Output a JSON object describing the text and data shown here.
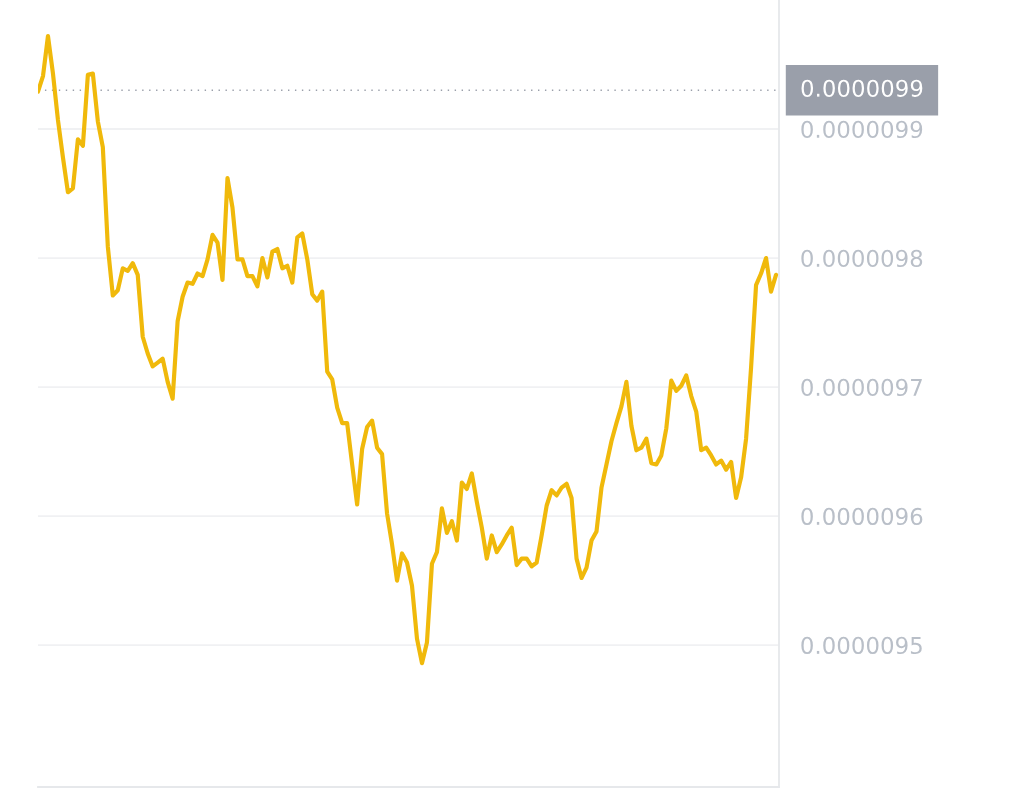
{
  "chart_data": {
    "type": "line",
    "categories": [
      null,
      null,
      null,
      null,
      null,
      null,
      null,
      null,
      null,
      null,
      null,
      null,
      null,
      null,
      null,
      null,
      null,
      null,
      null,
      null,
      null,
      null,
      null,
      null,
      null,
      null,
      null,
      null,
      null,
      null,
      null,
      null,
      null,
      null,
      null,
      null,
      null,
      null,
      null,
      null,
      null,
      null,
      null,
      null,
      null,
      null,
      null,
      null,
      null,
      null,
      null,
      null,
      null,
      null,
      null,
      null,
      null,
      null,
      null,
      null,
      null,
      null,
      null,
      null,
      null,
      null,
      null,
      null,
      null,
      null,
      null,
      null,
      null,
      null,
      null,
      null,
      null,
      null,
      null,
      null,
      null,
      null,
      null,
      null,
      null,
      null,
      null,
      null,
      null,
      null,
      null,
      null,
      null,
      null,
      null,
      null,
      null,
      null,
      null,
      null,
      null,
      null,
      null,
      null,
      null,
      null,
      null,
      null,
      null,
      null,
      null,
      null,
      null,
      null,
      null,
      null,
      null,
      null,
      null,
      null,
      null,
      null,
      null,
      null,
      null,
      null,
      null,
      null,
      null,
      null,
      null,
      null,
      null,
      null,
      null,
      null,
      null,
      null,
      null,
      null,
      null,
      null,
      null,
      null,
      null,
      null,
      null,
      null,
      null
    ],
    "series": [
      {
        "color": "#f0b90b",
        "values": [
          9.929e-06,
          9.941e-06,
          9.972e-06,
          9.943e-06,
          9.907e-06,
          9.878e-06,
          9.851e-06,
          9.854e-06,
          9.892e-06,
          9.887e-06,
          9.942e-06,
          9.943e-06,
          9.906e-06,
          9.886e-06,
          9.809e-06,
          9.771e-06,
          9.775e-06,
          9.792e-06,
          9.79e-06,
          9.796e-06,
          9.787e-06,
          9.739e-06,
          9.726e-06,
          9.716e-06,
          9.719e-06,
          9.722e-06,
          9.704e-06,
          9.691e-06,
          9.751e-06,
          9.77e-06,
          9.781e-06,
          9.78e-06,
          9.788e-06,
          9.786e-06,
          9.799e-06,
          9.818e-06,
          9.812e-06,
          9.783e-06,
          9.862e-06,
          9.839e-06,
          9.799e-06,
          9.799e-06,
          9.786e-06,
          9.786e-06,
          9.778e-06,
          9.8e-06,
          9.785e-06,
          9.805e-06,
          9.807e-06,
          9.792e-06,
          9.794e-06,
          9.781e-06,
          9.816e-06,
          9.819e-06,
          9.799e-06,
          9.772e-06,
          9.767e-06,
          9.774e-06,
          9.712e-06,
          9.706e-06,
          9.684e-06,
          9.672e-06,
          9.672e-06,
          9.64e-06,
          9.609e-06,
          9.652e-06,
          9.669e-06,
          9.674e-06,
          9.653e-06,
          9.648e-06,
          9.602e-06,
          9.578e-06,
          9.55e-06,
          9.571e-06,
          9.564e-06,
          9.546e-06,
          9.505e-06,
          9.486e-06,
          9.502e-06,
          9.563e-06,
          9.572e-06,
          9.606e-06,
          9.587e-06,
          9.596e-06,
          9.581e-06,
          9.626e-06,
          9.621e-06,
          9.633e-06,
          9.611e-06,
          9.591e-06,
          9.567e-06,
          9.585e-06,
          9.572e-06,
          9.578e-06,
          9.585e-06,
          9.591e-06,
          9.562e-06,
          9.567e-06,
          9.567e-06,
          9.561e-06,
          9.564e-06,
          9.585e-06,
          9.608e-06,
          9.62e-06,
          9.616e-06,
          9.622e-06,
          9.625e-06,
          9.614e-06,
          9.567e-06,
          9.552e-06,
          9.56e-06,
          9.581e-06,
          9.588e-06,
          9.622e-06,
          9.64e-06,
          9.658e-06,
          9.672e-06,
          9.685e-06,
          9.704e-06,
          9.67e-06,
          9.651e-06,
          9.653e-06,
          9.66e-06,
          9.641e-06,
          9.64e-06,
          9.647e-06,
          9.668e-06,
          9.705e-06,
          9.697e-06,
          9.701e-06,
          9.709e-06,
          9.693e-06,
          9.681e-06,
          9.651e-06,
          9.653e-06,
          9.647e-06,
          9.64e-06,
          9.643e-06,
          9.636e-06,
          9.642e-06,
          9.614e-06,
          9.63e-06,
          9.66e-06,
          9.715e-06,
          9.779e-06,
          9.788e-06,
          9.8e-06,
          9.774e-06,
          9.787e-06
        ]
      }
    ],
    "ylim": [
      9.39e-06,
      1e-05
    ],
    "yticks": [
      {
        "value": 9.5e-06,
        "label": "0.0000095"
      },
      {
        "value": 9.6e-06,
        "label": "0.0000096"
      },
      {
        "value": 9.7e-06,
        "label": "0.0000097"
      },
      {
        "value": 9.8e-06,
        "label": "0.0000098"
      },
      {
        "value": 9.9e-06,
        "label": "0.0000099"
      }
    ],
    "grid": "y",
    "line_style": "solid",
    "tick_labels": "y",
    "ref_lines": [
      {
        "axis": "y",
        "value": 9.93e-06,
        "label": "0.0000099",
        "color": "#9a9faa",
        "line_style": "dotted"
      }
    ]
  }
}
